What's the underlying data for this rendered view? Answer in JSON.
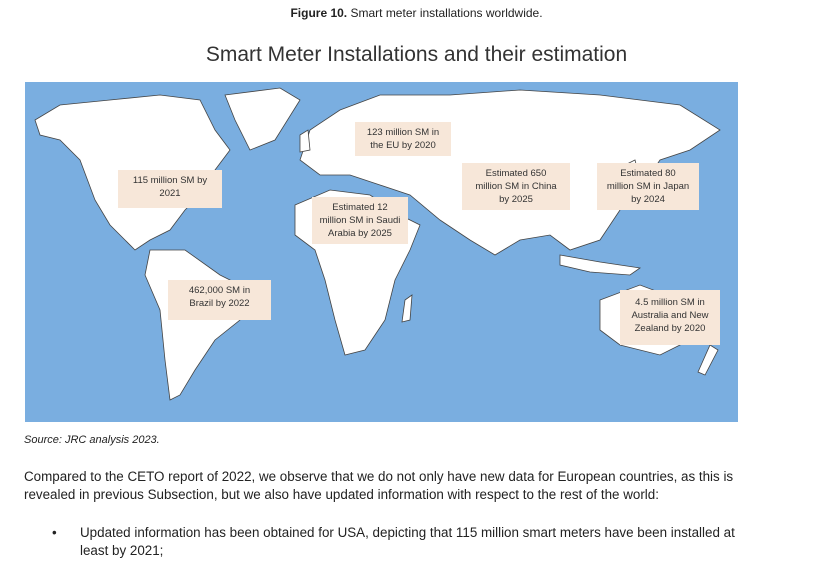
{
  "figure": {
    "label": "Figure 10.",
    "caption": " Smart meter installations worldwide."
  },
  "chart_title": "Smart Meter Installations and their estimation",
  "map": {
    "ocean_color": "#7aaee0",
    "land_color": "#ffffff",
    "label_bg": "#f7e7d9",
    "labels": {
      "eu": [
        "123 million SM in",
        "the EU by 2020"
      ],
      "usa": [
        "115 million SM by",
        "2021"
      ],
      "saudi": [
        "Estimated 12",
        "million SM in Saudi",
        "Arabia by 2025"
      ],
      "china": [
        "Estimated 650",
        "million SM in China",
        "by 2025"
      ],
      "japan": [
        "Estimated 80",
        "million SM in Japan",
        "by 2024"
      ],
      "brazil": [
        "462,000 SM in",
        "Brazil by 2022"
      ],
      "australia": [
        "4.5 million SM in",
        "Australia and New",
        "Zealand by 2020"
      ]
    }
  },
  "source": "Source: JRC analysis 2023.",
  "paragraph": "Compared to the CETO report of 2022, we observe that we do not only have new data for European countries, as this is revealed in previous Subsection, but we also have updated information with respect to the rest of the world:",
  "bullets": [
    "Updated information has been obtained for USA, depicting that 115 million smart meters have been installed at least by 2021;"
  ]
}
